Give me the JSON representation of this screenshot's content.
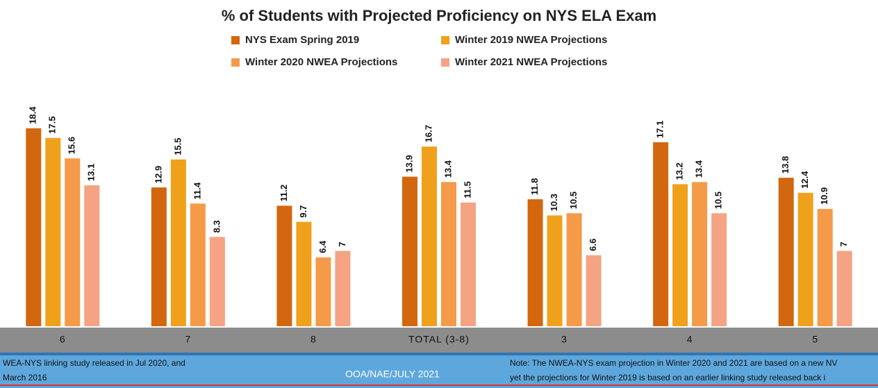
{
  "chart_data": {
    "type": "bar",
    "title": "% of Students with Projected Proficiency on NYS ELA Exam",
    "categories": [
      "6",
      "7",
      "8",
      "TOTAL (3-8)",
      "3",
      "4",
      "5"
    ],
    "series": [
      {
        "name": "NYS Exam Spring 2019",
        "color": "#d2670f",
        "values": [
          18.4,
          12.9,
          11.2,
          13.9,
          11.8,
          17.1,
          13.8
        ]
      },
      {
        "name": "Winter 2019 NWEA Projections",
        "color": "#f0a11c",
        "values": [
          17.5,
          15.5,
          9.7,
          16.7,
          10.3,
          13.2,
          12.4
        ]
      },
      {
        "name": "Winter 2020 NWEA Projections",
        "color": "#f59a48",
        "values": [
          15.6,
          11.4,
          6.4,
          13.4,
          10.5,
          13.4,
          10.9
        ]
      },
      {
        "name": "Winter 2021 NWEA Projections",
        "color": "#f4a383",
        "values": [
          13.1,
          8.3,
          7.0,
          11.5,
          6.6,
          10.5,
          7.0
        ]
      }
    ]
  },
  "footer": {
    "left": [
      "WEA-NYS linking study released in Jul 2020, and",
      "March 2016"
    ],
    "center": "OOA/NAE/JULY 2021",
    "right": [
      "Note: The NWEA-NYS exam projection in Winter 2020 and 2021 are based on a new NV",
      "yet the projections for Winter 2019 is based on an earlier linking study released back i"
    ]
  }
}
